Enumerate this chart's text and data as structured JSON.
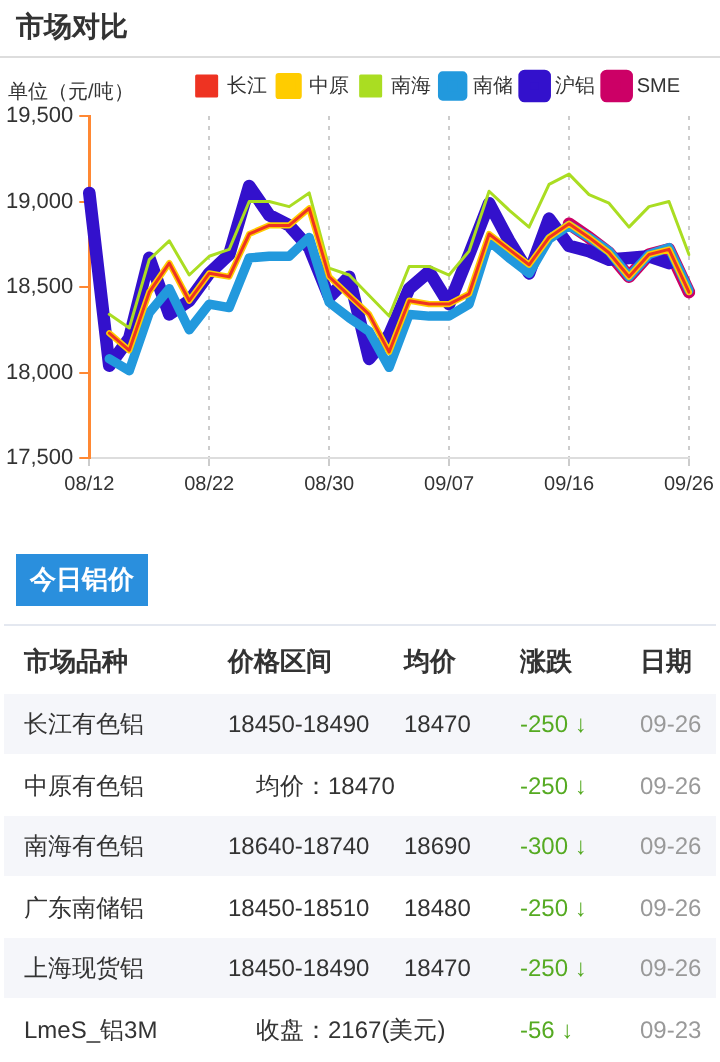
{
  "chart_data": [
    {
      "type": "line",
      "title": "市场对比",
      "ylabel": "单位（元/吨）",
      "legend": "top right",
      "grid": "x",
      "categories": [
        "08/12",
        null,
        null,
        null,
        null,
        null,
        "08/22",
        null,
        null,
        null,
        null,
        null,
        "08/30",
        null,
        null,
        null,
        null,
        null,
        "09/07",
        null,
        null,
        null,
        null,
        null,
        "09/16",
        null,
        null,
        null,
        null,
        null,
        "09/26"
      ],
      "ylim": [
        17500,
        19500
      ],
      "yticks": [
        {
          "value": 17500,
          "label": "17,500"
        },
        {
          "value": 18000,
          "label": "18,000"
        },
        {
          "value": 18500,
          "label": "18,500"
        },
        {
          "value": 19000,
          "label": "19,000"
        },
        {
          "value": 19500,
          "label": "19,500"
        }
      ],
      "series": [
        {
          "name": "长江",
          "color": "#ee3322",
          "values": [
            null,
            18230,
            18130,
            18470,
            18640,
            18420,
            18580,
            18560,
            18810,
            18860,
            18860,
            18960,
            18560,
            18450,
            18340,
            18120,
            18420,
            18400,
            18400,
            18460,
            18810,
            18720,
            18630,
            18790,
            18870,
            18790,
            18700,
            18560,
            18690,
            18720,
            18470
          ]
        },
        {
          "name": "中原",
          "color": "#ffcc00",
          "values": [
            null,
            18230,
            18130,
            18470,
            18640,
            18420,
            18580,
            18560,
            18810,
            18860,
            18860,
            18960,
            18560,
            18450,
            18340,
            18120,
            18420,
            18400,
            18400,
            18460,
            18810,
            18720,
            18630,
            18790,
            18870,
            18790,
            18700,
            18560,
            18690,
            18720,
            18470
          ]
        },
        {
          "name": "南海",
          "color": "#aadd22",
          "values": [
            null,
            18340,
            18260,
            18660,
            18770,
            18570,
            18680,
            18720,
            19000,
            19000,
            18970,
            19050,
            18610,
            18570,
            18450,
            18330,
            18620,
            18620,
            18570,
            18710,
            19060,
            18950,
            18850,
            19100,
            19160,
            19040,
            18990,
            18850,
            18970,
            19000,
            18690
          ]
        },
        {
          "name": "南储",
          "color": "#2299dd",
          "values": [
            null,
            18080,
            18010,
            18350,
            18490,
            18250,
            18400,
            18380,
            18670,
            18680,
            18680,
            18790,
            18410,
            18320,
            18240,
            18030,
            18340,
            18330,
            18330,
            18400,
            18770,
            18670,
            18580,
            18780,
            18860,
            18790,
            18710,
            18560,
            18690,
            18730,
            18480
          ]
        },
        {
          "name": "沪铝",
          "color": "#3311cc",
          "values": [
            19050,
            18040,
            18200,
            18670,
            18340,
            18420,
            18580,
            18690,
            19090,
            18920,
            18860,
            18730,
            18440,
            18560,
            18080,
            18220,
            18490,
            18590,
            18400,
            18690,
            18990,
            18770,
            18580,
            18900,
            18740,
            18710,
            18660,
            18670,
            18680,
            18640,
            null
          ]
        },
        {
          "name": "SME",
          "color": "#cc0066",
          "values": [
            null,
            null,
            null,
            null,
            null,
            null,
            null,
            null,
            null,
            null,
            null,
            null,
            null,
            null,
            null,
            null,
            null,
            null,
            null,
            null,
            null,
            null,
            null,
            null,
            18870,
            18790,
            18700,
            18560,
            18690,
            18720,
            18470
          ]
        }
      ]
    },
    {
      "type": "other",
      "title": "今日铝价",
      "categories": [
        "市场品种",
        "价格区间",
        "均价",
        "涨跌",
        "日期"
      ],
      "y_categories": [
        "长江有色铝",
        "中原有色铝",
        "南海有色铝",
        "广东南储铝",
        "上海现货铝",
        "LmeS_铝3M"
      ],
      "cell_labels": [
        [
          "18450-18490",
          "18470",
          "-250 ↓",
          "09-26"
        ],
        [
          "均价：18470",
          null,
          "-250 ↓",
          "09-26"
        ],
        [
          "18640-18740",
          "18690",
          "-300 ↓",
          "09-26"
        ],
        [
          "18450-18510",
          "18480",
          "-250 ↓",
          "09-26"
        ],
        [
          "18450-18490",
          "18470",
          "-250 ↓",
          "09-26"
        ],
        [
          "收盘：2167(美元)",
          null,
          "-56 ↓",
          "09-23"
        ]
      ]
    }
  ]
}
